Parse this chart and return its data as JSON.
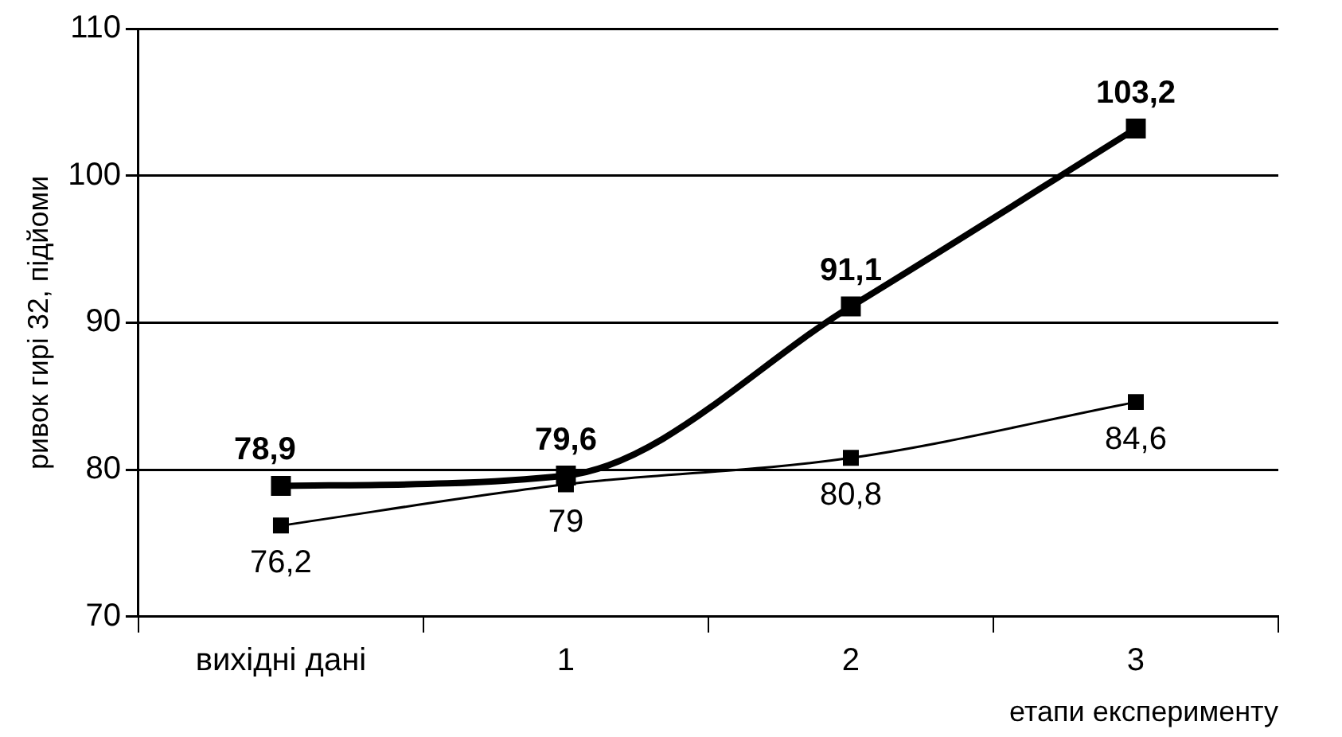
{
  "chart_data": {
    "type": "line",
    "xlabel": "етапи експерименту",
    "ylabel": "ривок гирі 32, підйоми",
    "categories": [
      "вихідні дані",
      "1",
      "2",
      "3"
    ],
    "series": [
      {
        "color": "#000000",
        "values": [
          78.9,
          79.6,
          91.1,
          103.2
        ],
        "value_labels": [
          "78,9",
          "79,6",
          "91,1",
          "103,2"
        ]
      },
      {
        "color": "#000000",
        "values": [
          76.2,
          79,
          80.8,
          84.6
        ],
        "value_labels": [
          "76,2",
          "79",
          "80,8",
          "84,6"
        ]
      }
    ],
    "ylim": [
      70,
      110
    ],
    "yticks": [
      70,
      80,
      90,
      100,
      110
    ],
    "grid": "y",
    "marker": "square",
    "line_style": "solid"
  }
}
